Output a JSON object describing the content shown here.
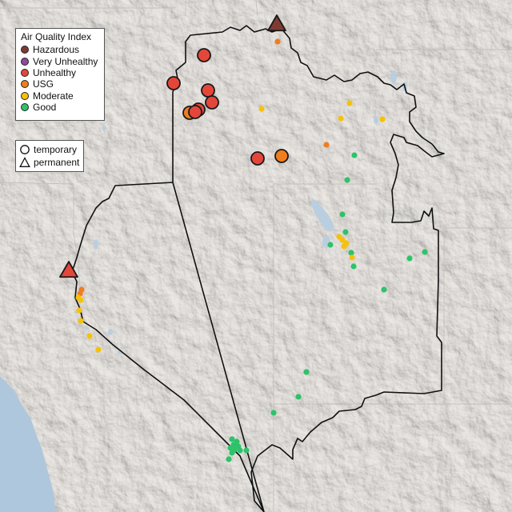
{
  "legend_aqi": {
    "title": "Air Quality Index",
    "items": [
      {
        "key": "hazardous",
        "label": "Hazardous",
        "color": "#7e3b32"
      },
      {
        "key": "very_unhealthy",
        "label": "Very Unhealthy",
        "color": "#8e4a9c"
      },
      {
        "key": "unhealthy",
        "label": "Unhealthy",
        "color": "#e4473a"
      },
      {
        "key": "usg",
        "label": "USG",
        "color": "#f07d1e"
      },
      {
        "key": "moderate",
        "label": "Moderate",
        "color": "#f4c20d"
      },
      {
        "key": "good",
        "label": "Good",
        "color": "#2ec26a"
      }
    ]
  },
  "legend_type": {
    "items": [
      {
        "key": "temporary",
        "label": "temporary",
        "icon": "circle-icon"
      },
      {
        "key": "permanent",
        "label": "permanent",
        "icon": "triangle-icon"
      }
    ]
  },
  "monitors": {
    "temporary_large": [
      {
        "aqi": "unhealthy"
      },
      {
        "aqi": "unhealthy"
      },
      {
        "aqi": "unhealthy"
      },
      {
        "aqi": "unhealthy"
      },
      {
        "aqi": "unhealthy"
      },
      {
        "aqi": "usg"
      },
      {
        "aqi": "unhealthy"
      },
      {
        "aqi": "usg"
      },
      {
        "aqi": "unhealthy"
      }
    ],
    "permanent": [
      {
        "aqi": "hazardous"
      },
      {
        "aqi": "unhealthy"
      }
    ]
  }
}
